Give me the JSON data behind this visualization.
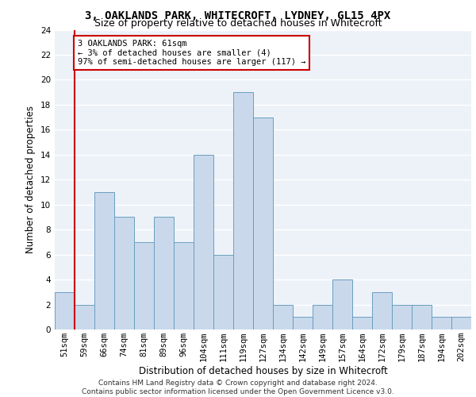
{
  "title1": "3, OAKLANDS PARK, WHITECROFT, LYDNEY, GL15 4PX",
  "title2": "Size of property relative to detached houses in Whitecroft",
  "xlabel": "Distribution of detached houses by size in Whitecroft",
  "ylabel": "Number of detached properties",
  "bar_color": "#c9d9eb",
  "bar_edge_color": "#6a9ec0",
  "categories": [
    "51sqm",
    "59sqm",
    "66sqm",
    "74sqm",
    "81sqm",
    "89sqm",
    "96sqm",
    "104sqm",
    "111sqm",
    "119sqm",
    "127sqm",
    "134sqm",
    "142sqm",
    "149sqm",
    "157sqm",
    "164sqm",
    "172sqm",
    "179sqm",
    "187sqm",
    "194sqm",
    "202sqm"
  ],
  "values": [
    3,
    2,
    11,
    9,
    7,
    9,
    7,
    14,
    6,
    19,
    17,
    2,
    1,
    2,
    4,
    1,
    3,
    2,
    2,
    1,
    1
  ],
  "ylim": [
    0,
    24
  ],
  "yticks": [
    0,
    2,
    4,
    6,
    8,
    10,
    12,
    14,
    16,
    18,
    20,
    22,
    24
  ],
  "property_line_x": 0.5,
  "annotation_text": "3 OAKLANDS PARK: 61sqm\n← 3% of detached houses are smaller (4)\n97% of semi-detached houses are larger (117) →",
  "annotation_box_color": "#ffffff",
  "annotation_box_edge_color": "#cc0000",
  "property_line_color": "#cc0000",
  "footer_line1": "Contains HM Land Registry data © Crown copyright and database right 2024.",
  "footer_line2": "Contains public sector information licensed under the Open Government Licence v3.0.",
  "background_color": "#edf2f9",
  "grid_color": "#ffffff",
  "title1_fontsize": 10,
  "title2_fontsize": 9,
  "xlabel_fontsize": 8.5,
  "ylabel_fontsize": 8.5,
  "tick_fontsize": 7.5,
  "footer_fontsize": 6.5,
  "annot_fontsize": 7.5
}
